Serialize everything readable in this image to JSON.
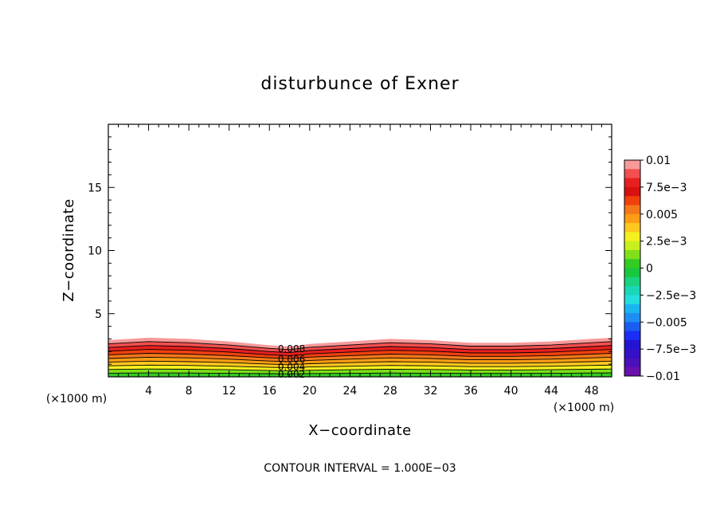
{
  "chart_data": {
    "type": "heatmap",
    "title": "disturbunce of Exner",
    "xlabel": "X−coordinate",
    "ylabel": "Z−coordinate",
    "x_unit_label": "(×1000 m)",
    "z_unit_label": "(×1000 m)",
    "xlim": [
      0,
      50
    ],
    "ylim": [
      0,
      20
    ],
    "x_ticks": [
      4,
      8,
      12,
      16,
      20,
      24,
      28,
      32,
      36,
      40,
      44,
      48
    ],
    "y_ticks": [
      5,
      10,
      15
    ],
    "footer": "CONTOUR INTERVAL = 1.000E−03",
    "contour_interval": 0.001,
    "contour_labels": [
      {
        "text": "0.008",
        "x": 18.2,
        "z": 2.2
      },
      {
        "text": "0.006",
        "x": 18.2,
        "z": 1.4
      },
      {
        "text": "0.004",
        "x": 18.2,
        "z": 0.8
      },
      {
        "text": "0.002",
        "x": 18.2,
        "z": 0.2
      }
    ],
    "surface_profile": {
      "x": [
        0,
        4,
        8,
        12,
        16,
        18,
        20,
        24,
        28,
        32,
        36,
        40,
        44,
        48,
        50
      ],
      "z_top": [
        2.9,
        3.1,
        3.0,
        2.8,
        2.5,
        2.4,
        2.6,
        2.8,
        3.0,
        2.9,
        2.7,
        2.7,
        2.8,
        3.0,
        3.1
      ]
    },
    "field_levels": [
      0.01,
      0.009,
      0.008,
      0.007,
      0.006,
      0.005,
      0.004,
      0.003,
      0.002,
      0.001
    ],
    "colorbar": {
      "min": -0.01,
      "max": 0.01,
      "labels": [
        "0.01",
        "7.5e−3",
        "0.005",
        "2.5e−3",
        "0",
        "−2.5e−3",
        "−0.005",
        "−7.5e−3",
        "−0.01"
      ],
      "colors": [
        "#f79a9a",
        "#f24f4f",
        "#e81f1f",
        "#d81010",
        "#f0400e",
        "#f5781a",
        "#ff9d14",
        "#ffc81e",
        "#f5f01e",
        "#c8f01e",
        "#7fe01a",
        "#33cc22",
        "#18c83f",
        "#1ad27f",
        "#1ad7b8",
        "#22dede",
        "#1ab4f0",
        "#1e8ef5",
        "#1a5ef0",
        "#1a2ef5",
        "#2314d4",
        "#3410c8",
        "#4b10bb",
        "#6a10ae"
      ]
    }
  }
}
